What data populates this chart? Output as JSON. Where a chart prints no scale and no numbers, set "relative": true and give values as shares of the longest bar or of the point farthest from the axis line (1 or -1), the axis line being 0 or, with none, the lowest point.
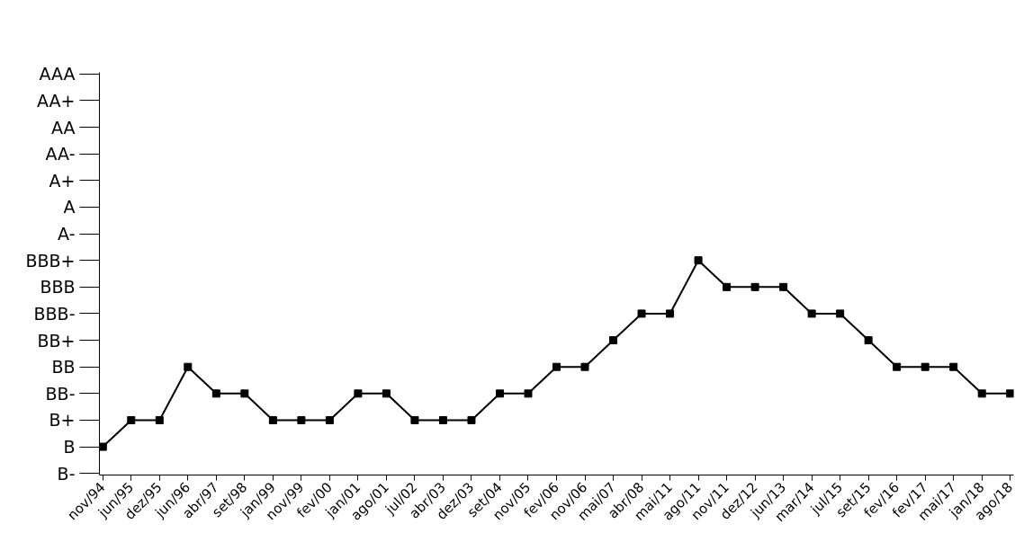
{
  "chart_data": {
    "type": "line",
    "relative": true,
    "categories": [
      "nov/94",
      "jun/95",
      "dez/95",
      "jun/96",
      "abr/97",
      "set/98",
      "jan/99",
      "nov/99",
      "fev/00",
      "jan/01",
      "ago/01",
      "jul/02",
      "abr/03",
      "dez/03",
      "set/04",
      "nov/05",
      "fev/06",
      "nov/06",
      "mai/07",
      "abr/08",
      "mai/11",
      "ago/11",
      "nov/11",
      "dez/12",
      "jun/13",
      "mar/14",
      "jul/15",
      "set/15",
      "fev/16",
      "fev/17",
      "mai/17",
      "jan/18",
      "ago/18"
    ],
    "series": [
      {
        "color": "#000000",
        "values": [
          0.125,
          0.25,
          0.25,
          0.5,
          0.375,
          0.375,
          0.25,
          0.25,
          0.25,
          0.375,
          0.375,
          0.25,
          0.25,
          0.25,
          0.375,
          0.375,
          0.5,
          0.5,
          0.625,
          0.75,
          0.75,
          1,
          0.875,
          0.875,
          0.875,
          0.75,
          0.75,
          0.625,
          0.5,
          0.5,
          0.5,
          0.375,
          0.375
        ]
      }
    ],
    "annotations": [
      "B-",
      "B",
      "B+",
      "BB-",
      "BB",
      "BB+",
      "BBB-",
      "BBB",
      "BBB+",
      "A-",
      "A",
      "A+",
      "AA-",
      "AA",
      "AA+",
      "AAA"
    ],
    "grid": false,
    "marker": "square",
    "line_style": "solid"
  }
}
